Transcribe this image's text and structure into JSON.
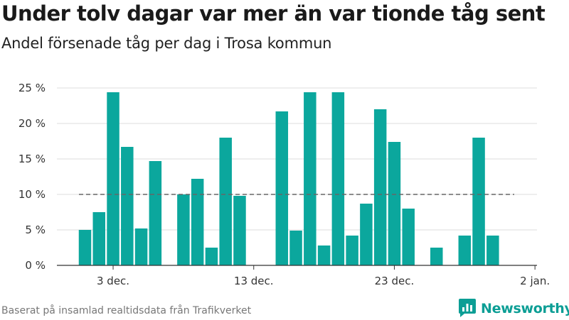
{
  "title": "Under tolv dagar var mer än var tionde tåg sent",
  "subtitle": "Andel försenade tåg per dag i Trosa kommun",
  "source": "Baserat på insamlad realtidsdata från Trafikverket",
  "brand": {
    "name": "Newsworthy",
    "icon": "newsworthy-bar-chart-logo"
  },
  "colors": {
    "bar": "#0ba79d",
    "reference_line": "#666666",
    "grid": "#dddddd",
    "axis": "#333333",
    "brand": "#0c9e95"
  },
  "chart_data": {
    "type": "bar",
    "x": [
      "2022-12-01",
      "2022-12-02",
      "2022-12-03",
      "2022-12-04",
      "2022-12-05",
      "2022-12-06",
      "2022-12-07",
      "2022-12-08",
      "2022-12-09",
      "2022-12-10",
      "2022-12-11",
      "2022-12-12",
      "2022-12-13",
      "2022-12-14",
      "2022-12-15",
      "2022-12-16",
      "2022-12-17",
      "2022-12-18",
      "2022-12-19",
      "2022-12-20",
      "2022-12-21",
      "2022-12-22",
      "2022-12-23",
      "2022-12-24",
      "2022-12-25",
      "2022-12-26",
      "2022-12-27",
      "2022-12-28",
      "2022-12-29",
      "2022-12-30",
      "2022-12-31"
    ],
    "values": [
      5.0,
      7.5,
      24.4,
      16.7,
      5.2,
      14.7,
      null,
      10.0,
      12.2,
      2.5,
      18.0,
      9.8,
      0,
      0,
      21.7,
      4.9,
      24.4,
      2.8,
      24.4,
      4.2,
      8.7,
      22.0,
      17.4,
      8.0,
      0,
      2.5,
      0,
      4.2,
      18.0,
      4.2,
      null
    ],
    "x_ticks": [
      {
        "date": "2022-12-03",
        "label": "3 dec."
      },
      {
        "date": "2022-12-13",
        "label": "13 dec."
      },
      {
        "date": "2022-12-23",
        "label": "23 dec."
      },
      {
        "date": "2023-01-02",
        "label": "2 jan."
      }
    ],
    "y_ticks": [
      {
        "value": 0,
        "label": "0 %"
      },
      {
        "value": 5,
        "label": "5 %"
      },
      {
        "value": 10,
        "label": "10 %"
      },
      {
        "value": 15,
        "label": "15 %"
      },
      {
        "value": 20,
        "label": "20 %"
      },
      {
        "value": 25,
        "label": "25 %"
      }
    ],
    "ylim": [
      0,
      25
    ],
    "reference_line": {
      "value": 10,
      "style": "dashed"
    },
    "xlabel": "",
    "ylabel": "",
    "grid": true,
    "legend": false
  }
}
